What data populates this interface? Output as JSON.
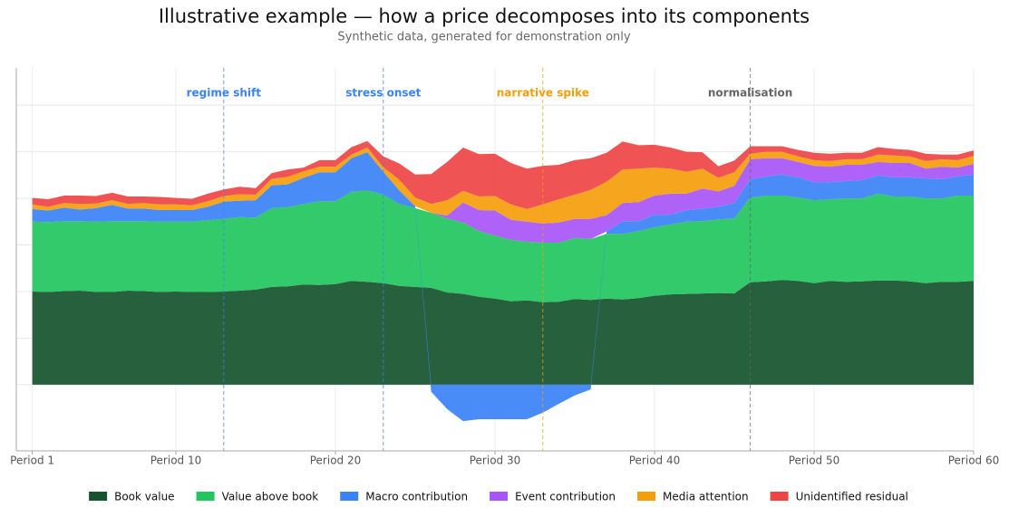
{
  "chart_data": {
    "type": "stacked_area",
    "title": "Illustrative example — how a price decomposes into its components",
    "subtitle": "Synthetic data, generated for demonstration only",
    "x": [
      1,
      2,
      3,
      4,
      5,
      6,
      7,
      8,
      9,
      10,
      11,
      12,
      13,
      14,
      15,
      16,
      17,
      18,
      19,
      20,
      21,
      22,
      23,
      24,
      25,
      26,
      27,
      28,
      29,
      30,
      31,
      32,
      33,
      34,
      35,
      36,
      37,
      38,
      39,
      40,
      41,
      42,
      43,
      44,
      45,
      46,
      47,
      48,
      49,
      50,
      51,
      52,
      53,
      54,
      55,
      56,
      57,
      58,
      59,
      60
    ],
    "xlim": [
      0,
      60
    ],
    "xticks": [
      {
        "value": 1,
        "label": "Period 1"
      },
      {
        "value": 10,
        "label": "Period 10"
      },
      {
        "value": 20,
        "label": "Period 20"
      },
      {
        "value": 30,
        "label": "Period 30"
      },
      {
        "value": 40,
        "label": "Period 40"
      },
      {
        "value": 50,
        "label": "Period 50"
      },
      {
        "value": 60,
        "label": "Period 60"
      }
    ],
    "ylim": [
      -14.2,
      68
    ],
    "yticks": [
      0,
      10,
      20,
      30,
      40,
      50,
      60
    ],
    "grid": true,
    "legend": "bottom",
    "series": [
      {
        "name": "Book value",
        "color": "#14532d",
        "values": [
          20.0,
          19.9,
          20.1,
          20.2,
          19.9,
          19.9,
          20.2,
          20.1,
          19.9,
          20.0,
          19.9,
          19.9,
          20.0,
          20.2,
          20.4,
          21.0,
          21.1,
          21.5,
          21.4,
          21.6,
          22.3,
          22.1,
          21.8,
          21.2,
          21.0,
          20.8,
          19.8,
          19.5,
          18.9,
          18.5,
          17.9,
          18.1,
          17.7,
          17.8,
          18.4,
          18.2,
          18.5,
          18.3,
          18.6,
          19.1,
          19.4,
          19.5,
          19.6,
          19.7,
          19.6,
          22.0,
          22.2,
          22.5,
          22.3,
          21.8,
          22.3,
          22.1,
          22.2,
          22.4,
          22.4,
          22.2,
          21.8,
          22.1,
          22.1,
          22.3
        ]
      },
      {
        "name": "Value above book",
        "color": "#22c55e",
        "values": [
          15.0,
          15.0,
          15.0,
          14.9,
          15.1,
          15.2,
          14.9,
          15.0,
          15.1,
          15.0,
          15.1,
          15.4,
          15.6,
          15.8,
          15.5,
          16.9,
          17.0,
          17.3,
          18.0,
          17.8,
          19.1,
          19.6,
          19.0,
          17.6,
          16.9,
          16.1,
          15.9,
          15.3,
          14.1,
          13.5,
          13.2,
          12.6,
          12.8,
          12.7,
          13.1,
          13.1,
          13.9,
          14.1,
          14.4,
          14.7,
          15.0,
          15.5,
          15.5,
          15.8,
          16.1,
          18.2,
          18.4,
          18.1,
          17.9,
          17.8,
          17.5,
          17.9,
          17.8,
          18.6,
          18.0,
          18.2,
          18.2,
          17.9,
          18.5,
          18.3
        ]
      },
      {
        "name": "Macro contribution",
        "color": "#3b82f6",
        "values": [
          2.7,
          2.5,
          2.9,
          2.5,
          2.9,
          3.5,
          2.7,
          2.7,
          2.5,
          2.5,
          2.5,
          2.9,
          3.7,
          3.5,
          3.7,
          4.9,
          4.9,
          5.6,
          6.2,
          6.2,
          7.2,
          8.2,
          4.9,
          2.9,
          0.4,
          -1.5,
          -5.2,
          -7.8,
          -7.4,
          -7.4,
          -7.4,
          -7.4,
          -6.0,
          -4.1,
          -2.3,
          -1.0,
          0.5,
          2.7,
          2.1,
          2.7,
          2.1,
          2.5,
          2.7,
          2.7,
          3.3,
          3.9,
          4.1,
          4.5,
          4.3,
          3.9,
          3.7,
          3.7,
          3.9,
          3.9,
          4.1,
          4.1,
          4.3,
          4.1,
          4.1,
          4.5
        ]
      },
      {
        "name": "Event contribution",
        "color": "#a855f7",
        "values": [
          0,
          0,
          0,
          0,
          0,
          0,
          0,
          0,
          0,
          0,
          0,
          0,
          0,
          0,
          0,
          0,
          0,
          0,
          0,
          0,
          0,
          0,
          0,
          0,
          0,
          0,
          0.6,
          4.3,
          4.5,
          5.4,
          4.3,
          4.3,
          4.1,
          4.3,
          4.1,
          4.3,
          3.5,
          3.9,
          4.1,
          4.1,
          4.5,
          3.5,
          4.3,
          3.3,
          3.7,
          4.3,
          3.9,
          3.5,
          3.3,
          3.5,
          3.3,
          3.5,
          3.3,
          2.9,
          3.1,
          3.1,
          2.1,
          2.7,
          1.9,
          2.3
        ]
      },
      {
        "name": "Media attention",
        "color": "#f59e0b",
        "values": [
          1.0,
          0.8,
          1.0,
          1.2,
          1.0,
          1.0,
          1.0,
          1.2,
          1.2,
          1.2,
          1.0,
          1.2,
          1.2,
          1.4,
          1.2,
          1.4,
          1.6,
          1.4,
          1.2,
          1.2,
          0.8,
          1.0,
          1.0,
          2.3,
          1.9,
          1.9,
          3.3,
          2.5,
          2.9,
          3.1,
          3.3,
          2.7,
          4.1,
          5.0,
          5.2,
          6.2,
          7.2,
          7.2,
          7.2,
          6.0,
          5.4,
          4.7,
          4.3,
          2.9,
          2.9,
          1.2,
          1.4,
          1.4,
          1.2,
          1.2,
          1.2,
          1.2,
          1.2,
          1.6,
          1.6,
          1.4,
          1.6,
          1.6,
          1.6,
          1.7
        ]
      },
      {
        "name": "Unidentified residual",
        "color": "#ef4444",
        "values": [
          1.4,
          1.6,
          1.6,
          1.8,
          1.6,
          1.6,
          1.6,
          1.4,
          1.6,
          1.4,
          1.4,
          1.6,
          1.4,
          1.6,
          1.4,
          1.2,
          1.6,
          0.8,
          1.4,
          1.4,
          1.6,
          1.4,
          2.3,
          3.5,
          4.9,
          6.4,
          8.2,
          9.3,
          9.1,
          9.1,
          8.9,
          8.7,
          8.3,
          7.4,
          7.4,
          6.8,
          6.2,
          6.0,
          5.0,
          4.9,
          4.5,
          4.3,
          3.5,
          2.5,
          2.5,
          1.6,
          1.2,
          1.2,
          1.4,
          1.6,
          1.6,
          1.4,
          1.4,
          1.6,
          1.4,
          1.4,
          1.6,
          1.0,
          1.2,
          1.2
        ]
      }
    ],
    "annotations": [
      {
        "x": 13,
        "label": "regime shift",
        "color": "#3b82f6"
      },
      {
        "x": 23,
        "label": "stress onset",
        "color": "#3b82f6"
      },
      {
        "x": 33,
        "label": "narrative spike",
        "color": "#f59e0b"
      },
      {
        "x": 46,
        "label": "normalisation",
        "color": "#666666"
      }
    ]
  }
}
